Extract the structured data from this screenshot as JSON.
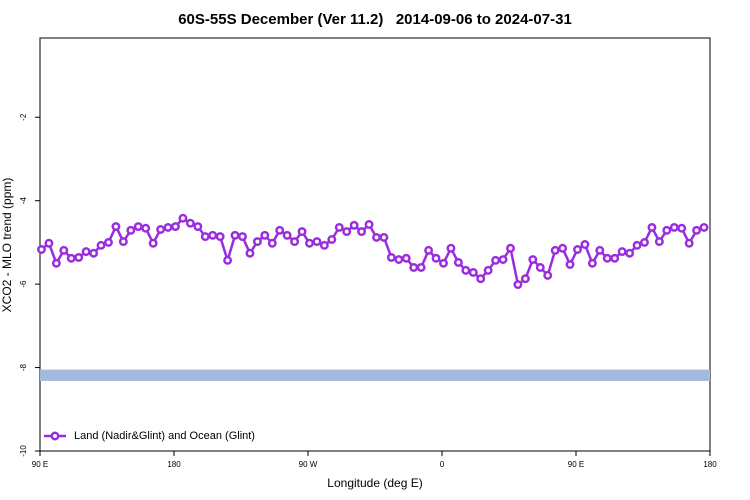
{
  "chart_data": {
    "type": "line",
    "title": "60S-55S December (Ver 11.2)   2014-09-06 to 2024-07-31",
    "x_label": "Longitude (deg E)",
    "y_label": "XCO2 - MLO trend (ppm)",
    "xlim": [
      90,
      540
    ],
    "ylim": [
      -10,
      -0.1
    ],
    "xticks": [
      {
        "value": 90,
        "label": "90 E"
      },
      180,
      {
        "value": 270,
        "label": "90 W"
      },
      {
        "value": 360,
        "label": "0"
      },
      {
        "value": 450,
        "label": "90 E"
      },
      {
        "value": 540,
        "label": "180"
      }
    ],
    "yticks": [
      -10,
      -8,
      -6,
      -4,
      -2
    ],
    "band": {
      "values": [
        -8.32,
        -8.05
      ],
      "color": "#a3b9dd"
    },
    "legend": "bottom-left",
    "series": [
      {
        "name": "Land (Nadir&Glint) and Ocean (Glint)",
        "color": "#9b2bdf",
        "x": [
          91,
          96,
          101,
          106,
          111,
          116,
          121,
          126,
          131,
          136,
          141,
          146,
          151,
          156,
          161,
          166,
          171,
          176,
          181,
          186,
          191,
          196,
          201,
          206,
          211,
          216,
          221,
          226,
          231,
          236,
          241,
          246,
          251,
          256,
          261,
          266,
          271,
          276,
          281,
          286,
          291,
          296,
          301,
          306,
          311,
          316,
          321,
          326,
          331,
          336,
          341,
          346,
          351,
          356,
          361,
          366,
          371,
          376,
          381,
          386,
          391,
          396,
          401,
          406,
          411,
          416,
          421,
          426,
          431,
          436,
          441,
          446,
          451,
          456,
          461,
          466,
          471,
          476,
          481,
          486,
          491,
          496,
          501,
          506,
          511,
          516,
          521,
          526,
          531,
          536
        ],
        "values": [
          -5.17,
          -5.02,
          -5.5,
          -5.19,
          -5.38,
          -5.36,
          -5.22,
          -5.26,
          -5.07,
          -5.0,
          -4.62,
          -4.98,
          -4.71,
          -4.62,
          -4.66,
          -5.02,
          -4.69,
          -4.64,
          -4.62,
          -4.42,
          -4.54,
          -4.62,
          -4.86,
          -4.83,
          -4.86,
          -5.43,
          -4.83,
          -4.86,
          -5.26,
          -4.98,
          -4.83,
          -5.02,
          -4.71,
          -4.83,
          -4.98,
          -4.74,
          -5.02,
          -4.98,
          -5.07,
          -4.93,
          -4.64,
          -4.74,
          -4.59,
          -4.74,
          -4.57,
          -4.88,
          -4.88,
          -5.36,
          -5.41,
          -5.38,
          -5.6,
          -5.6,
          -5.19,
          -5.38,
          -5.5,
          -5.14,
          -5.48,
          -5.67,
          -5.72,
          -5.87,
          -5.67,
          -5.43,
          -5.41,
          -5.14,
          -6.01,
          -5.87,
          -5.41,
          -5.6,
          -5.79,
          -5.19,
          -5.14,
          -5.53,
          -5.17,
          -5.05,
          -5.5,
          -5.19,
          -5.38,
          -5.38,
          -5.22,
          -5.26,
          -5.07,
          -5.0,
          -4.64,
          -4.98,
          -4.71,
          -4.64,
          -4.66,
          -5.02,
          -4.71,
          -4.64
        ]
      }
    ]
  }
}
